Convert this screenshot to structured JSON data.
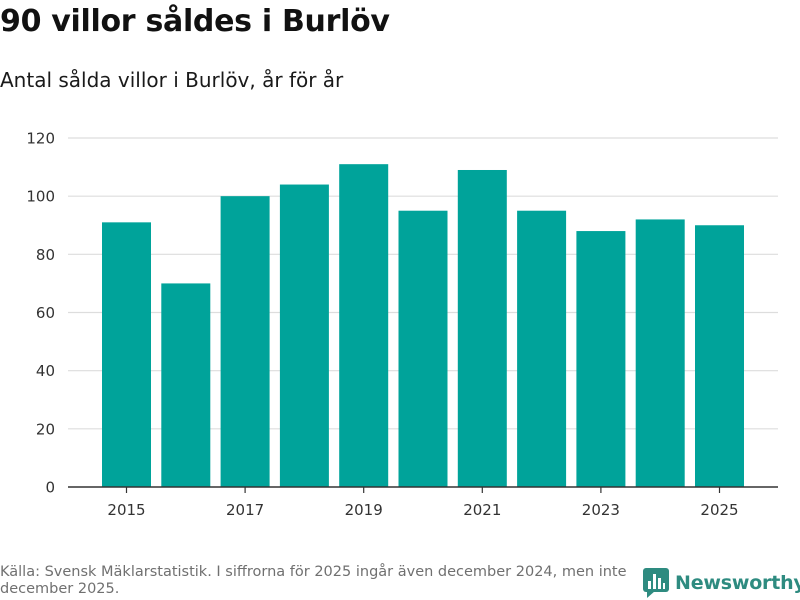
{
  "header": {
    "title": "90 villor såldes i Burlöv",
    "subtitle": "Antal sålda villor i Burlöv, år för år"
  },
  "footer": {
    "source": "Källa: Svensk Mäklarstatistik. I siffrorna för 2025 ingår även december 2024, men inte december 2025.",
    "brand": "Newsworthy"
  },
  "colors": {
    "bar": "#00A39A",
    "grid": "#dddddd",
    "axis": "#333333",
    "brand": "#2e8b80"
  },
  "chart_data": {
    "type": "bar",
    "title": "90 villor såldes i Burlöv",
    "subtitle": "Antal sålda villor i Burlöv, år för år",
    "xlabel": "",
    "ylabel": "",
    "categories": [
      "2015",
      "2016",
      "2017",
      "2018",
      "2019",
      "2020",
      "2021",
      "2022",
      "2023",
      "2024",
      "2025"
    ],
    "values": [
      91,
      70,
      100,
      104,
      111,
      95,
      109,
      95,
      88,
      92,
      90
    ],
    "x_tick_labels": [
      "2015",
      "2017",
      "2019",
      "2021",
      "2023",
      "2025"
    ],
    "y_ticks": [
      0,
      20,
      40,
      60,
      80,
      100,
      120
    ],
    "ylim": [
      0,
      120
    ],
    "grid": true,
    "legend": "none"
  }
}
